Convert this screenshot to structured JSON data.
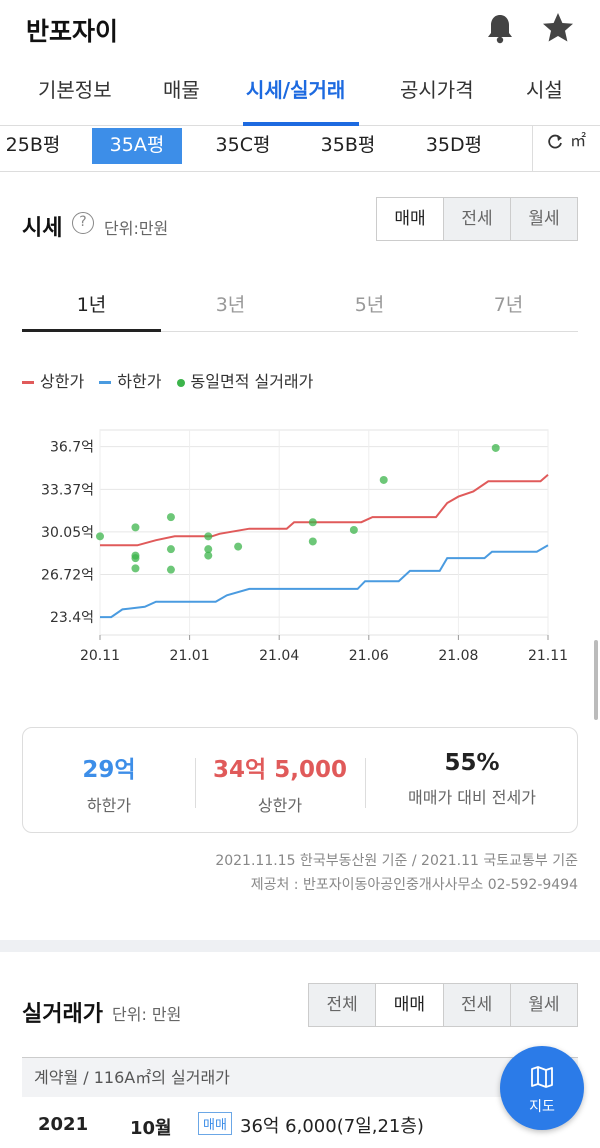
{
  "header": {
    "title": "반포자이"
  },
  "nav": {
    "tabs": [
      "기본정보",
      "매물",
      "시세/실거래",
      "공시가격",
      "시설"
    ],
    "active": 2
  },
  "sizes": {
    "items": [
      "25B평",
      "35A평",
      "35C평",
      "35B평",
      "35D평"
    ],
    "active": 1,
    "unit_toggle": "㎡"
  },
  "price_section": {
    "title": "시세",
    "unit": "단위:만원",
    "segments": [
      "매매",
      "전세",
      "월세"
    ],
    "active_segment": 0,
    "periods": [
      "1년",
      "3년",
      "5년",
      "7년"
    ],
    "active_period": 0,
    "legend": [
      "상한가",
      "하한가",
      "동일면적 실거래가"
    ]
  },
  "colors": {
    "upper": "#e05a5a",
    "lower": "#4a9be0",
    "deal": "#3cb44b",
    "accent": "#1d6ae0"
  },
  "chart_data": {
    "type": "line",
    "title": "",
    "xlabel": "",
    "ylabel": "",
    "x_ticks": [
      "20.11",
      "21.01",
      "21.04",
      "21.06",
      "21.08",
      "21.11"
    ],
    "y_ticks": [
      "23.4억",
      "26.72억",
      "30.05억",
      "33.37억",
      "36.7억"
    ],
    "ylim": [
      22.0,
      38.0
    ],
    "xlim": [
      0,
      12
    ],
    "grid": true,
    "legend_position": "top-left",
    "series": [
      {
        "name": "상한가",
        "points": [
          [
            0,
            29.0
          ],
          [
            0.6,
            29.0
          ],
          [
            1.0,
            29.0
          ],
          [
            1.5,
            29.4
          ],
          [
            2.0,
            29.7
          ],
          [
            3.0,
            29.7
          ],
          [
            3.2,
            29.9
          ],
          [
            4.0,
            30.3
          ],
          [
            5.0,
            30.3
          ],
          [
            5.2,
            30.8
          ],
          [
            7.0,
            30.8
          ],
          [
            7.3,
            31.2
          ],
          [
            9.0,
            31.2
          ],
          [
            9.3,
            32.3
          ],
          [
            9.6,
            32.8
          ],
          [
            10.0,
            33.2
          ],
          [
            10.4,
            34.0
          ],
          [
            11.8,
            34.0
          ],
          [
            12.0,
            34.5
          ]
        ]
      },
      {
        "name": "하한가",
        "points": [
          [
            0,
            23.4
          ],
          [
            0.3,
            23.4
          ],
          [
            0.6,
            24.0
          ],
          [
            1.2,
            24.2
          ],
          [
            1.5,
            24.6
          ],
          [
            3.1,
            24.6
          ],
          [
            3.4,
            25.1
          ],
          [
            4.0,
            25.6
          ],
          [
            6.9,
            25.6
          ],
          [
            7.1,
            26.2
          ],
          [
            8.0,
            26.2
          ],
          [
            8.3,
            27.0
          ],
          [
            9.1,
            27.0
          ],
          [
            9.3,
            28.0
          ],
          [
            10.3,
            28.0
          ],
          [
            10.5,
            28.5
          ],
          [
            11.7,
            28.5
          ],
          [
            12.0,
            29.0
          ]
        ]
      }
    ],
    "scatter": {
      "name": "동일면적 실거래가",
      "points": [
        [
          0.0,
          29.7
        ],
        [
          0.95,
          30.4
        ],
        [
          0.95,
          28.2
        ],
        [
          0.95,
          28.0
        ],
        [
          0.95,
          27.2
        ],
        [
          1.9,
          31.2
        ],
        [
          1.9,
          28.7
        ],
        [
          1.9,
          27.1
        ],
        [
          2.9,
          29.7
        ],
        [
          2.9,
          28.7
        ],
        [
          2.9,
          28.2
        ],
        [
          3.7,
          28.9
        ],
        [
          5.7,
          30.8
        ],
        [
          5.7,
          29.3
        ],
        [
          6.8,
          30.2
        ],
        [
          7.6,
          34.1
        ],
        [
          10.6,
          36.6
        ]
      ]
    }
  },
  "summary": [
    {
      "value": "29억",
      "label": "하한가",
      "color": "#3d8ee8"
    },
    {
      "value": "34억 5,000",
      "label": "상한가",
      "color": "#e05a5a"
    },
    {
      "value": "55%",
      "label": "매매가 대비 전세가",
      "color": "#222222"
    }
  ],
  "notes": {
    "source": "2021.11.15 한국부동산원 기준 / 2021.11 국토교통부 기준",
    "provider": "제공처 : 반포자이동아공인중개사사무소 02-592-9494"
  },
  "deals_section": {
    "title": "실거래가",
    "unit": "단위: 만원",
    "segments": [
      "전체",
      "매매",
      "전세",
      "월세"
    ],
    "active_segment": 1,
    "table_header": "계약월 / 116A㎡의 실거래가",
    "rows": [
      {
        "year": "2021",
        "month": "10월",
        "type": "매매",
        "price": "36억 6,000(7일,21층)"
      }
    ]
  },
  "map_button": {
    "label": "지도"
  }
}
